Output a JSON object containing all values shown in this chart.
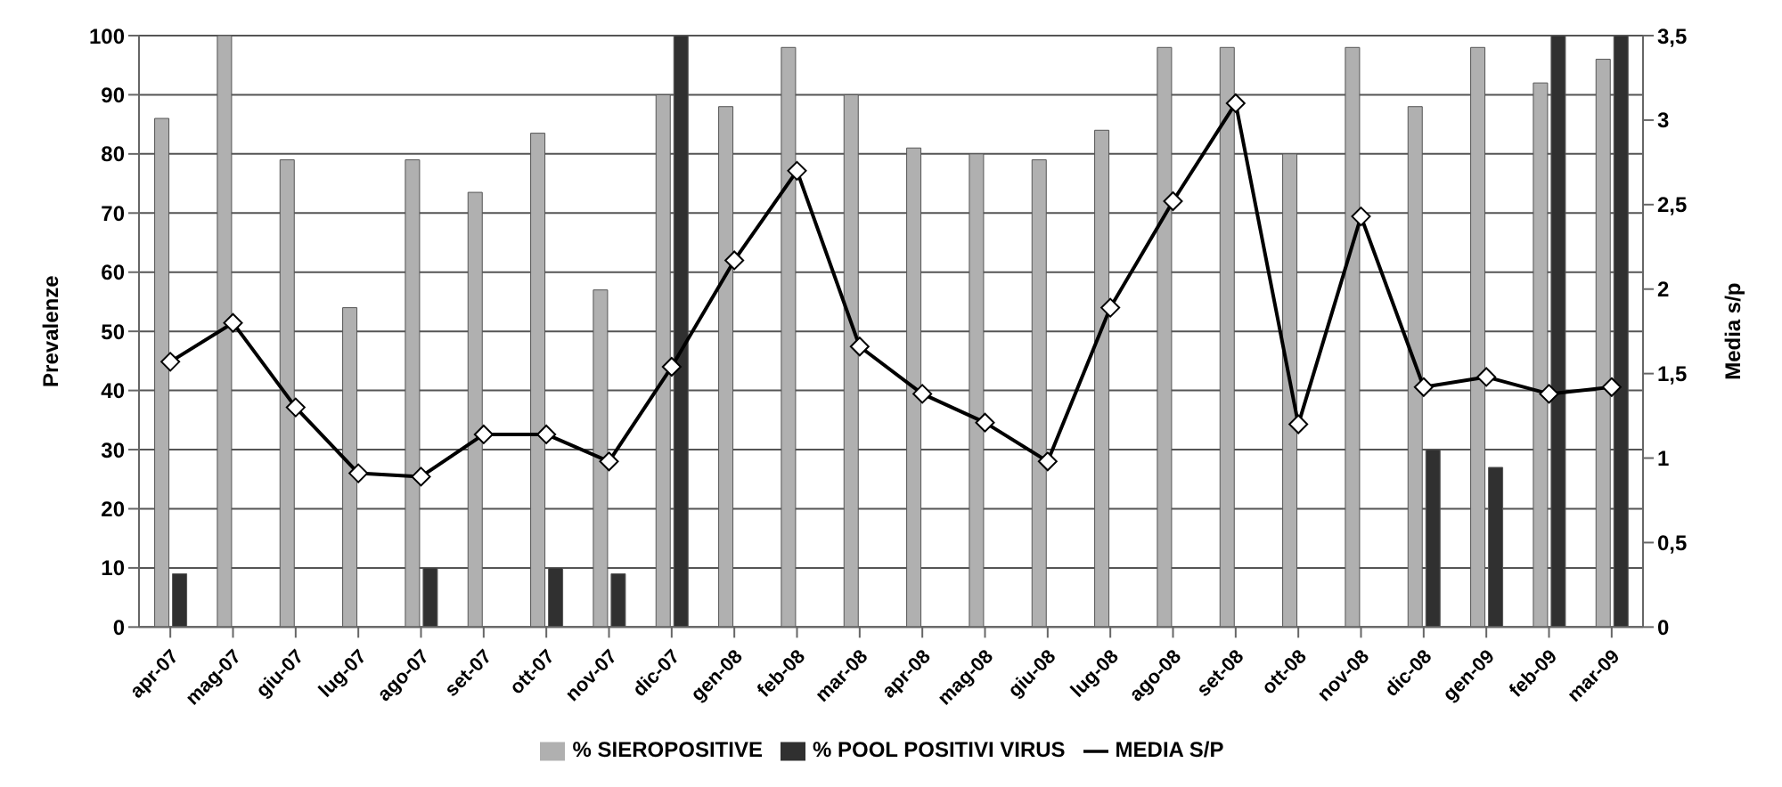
{
  "chart_data": {
    "type": "bar",
    "ylabel": "Prevalenze",
    "y2label": "Media s/p",
    "categories": [
      "apr-07",
      "mag-07",
      "giu-07",
      "lug-07",
      "ago-07",
      "set-07",
      "ott-07",
      "nov-07",
      "dic-07",
      "gen-08",
      "feb-08",
      "mar-08",
      "apr-08",
      "mag-08",
      "giu-08",
      "lug-08",
      "ago-08",
      "set-08",
      "ott-08",
      "nov-08",
      "dic-08",
      "gen-09",
      "feb-09",
      "mar-09"
    ],
    "series": [
      {
        "name": "% SIEROPOSITIVE",
        "color": "#b0b0b0",
        "values": [
          86,
          100,
          79,
          54,
          79,
          73.5,
          83.5,
          57,
          90,
          88,
          98,
          90,
          81,
          80,
          79,
          84,
          98,
          98,
          80,
          98,
          88,
          98,
          92,
          96
        ]
      },
      {
        "name": "% POOL POSITIVI VIRUS",
        "color": "#303030",
        "values": [
          9,
          null,
          null,
          null,
          10,
          null,
          10,
          9,
          100,
          null,
          null,
          null,
          null,
          null,
          null,
          null,
          null,
          null,
          null,
          null,
          30,
          27,
          100,
          100
        ]
      },
      {
        "name": "MEDIA S/P",
        "type": "line",
        "axis": "y2",
        "color": "#000000",
        "marker": "diamond",
        "values": [
          1.57,
          1.8,
          1.3,
          0.91,
          0.89,
          1.14,
          1.14,
          0.98,
          1.54,
          2.17,
          2.7,
          1.66,
          1.38,
          1.21,
          0.98,
          1.89,
          2.52,
          3.1,
          1.2,
          2.43,
          1.42,
          1.48,
          1.38,
          1.42
        ]
      }
    ],
    "ylim": [
      0,
      100
    ],
    "yticks": [
      0,
      10,
      20,
      30,
      40,
      50,
      60,
      70,
      80,
      90,
      100
    ],
    "y2lim": [
      0,
      3.5
    ],
    "y2ticks": [
      0,
      {
        "value": 0.5,
        "label": "0,5"
      },
      1,
      {
        "value": 1.5,
        "label": "1,5"
      },
      2,
      {
        "value": 2.5,
        "label": "2,5"
      },
      3,
      {
        "value": 3.5,
        "label": "3,5"
      }
    ],
    "grid": "y",
    "legend": "bottom"
  }
}
